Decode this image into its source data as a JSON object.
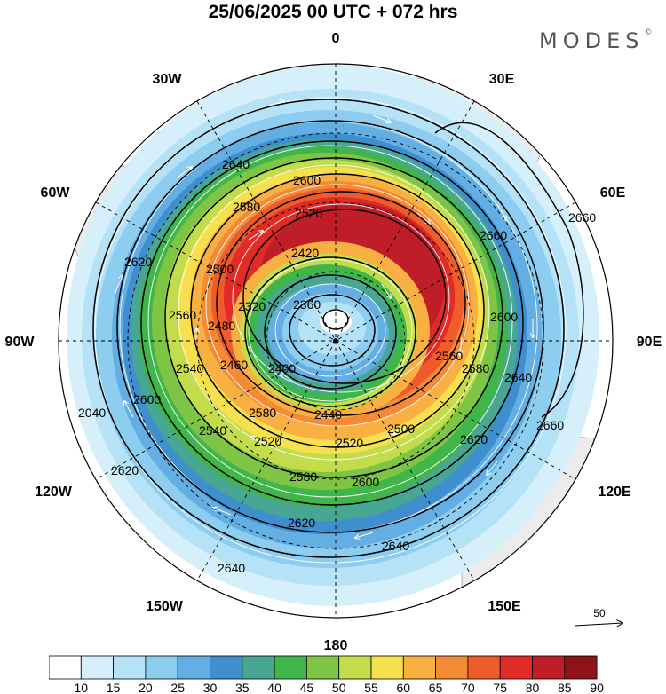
{
  "title": "25/06/2025  00 UTC  + 072 hrs",
  "logo": "MODES",
  "logo_mark": "©",
  "longitude_labels": {
    "n": "0",
    "s": "180",
    "w": "90W",
    "e": "90E",
    "nw1": "30W",
    "nw2": "60W",
    "ne1": "30E",
    "ne2": "60E",
    "sw1": "120W",
    "sw2": "150W",
    "se1": "120E",
    "se2": "150E"
  },
  "contour_labels": [
    "2640",
    "2600",
    "2580",
    "2520",
    "2420",
    "2360",
    "2320",
    "2480",
    "2500",
    "2620",
    "2560",
    "2540",
    "2460",
    "2400",
    "2440",
    "2500",
    "2520",
    "2540",
    "2520",
    "2580",
    "2600",
    "2620",
    "2640",
    "2660",
    "2660",
    "2660",
    "2600",
    "2580",
    "2560",
    "2640",
    "2620",
    "2600",
    "2640",
    "2620",
    "2580",
    "2040"
  ],
  "reference_vector": {
    "value": "50"
  },
  "colorbar": {
    "ticks": [
      "10",
      "15",
      "20",
      "25",
      "30",
      "35",
      "40",
      "45",
      "50",
      "55",
      "60",
      "65",
      "70",
      "75",
      "80",
      "85",
      "90"
    ],
    "colors": [
      "#ffffff",
      "#d6f0fb",
      "#b5e2f6",
      "#8dcdf0",
      "#63aee2",
      "#3f8fcf",
      "#47a793",
      "#40b54a",
      "#7ec546",
      "#c3dc4b",
      "#f7e04e",
      "#f8b043",
      "#f38b36",
      "#ee5c2c",
      "#e02b27",
      "#bf1d27",
      "#8e1318"
    ]
  }
}
